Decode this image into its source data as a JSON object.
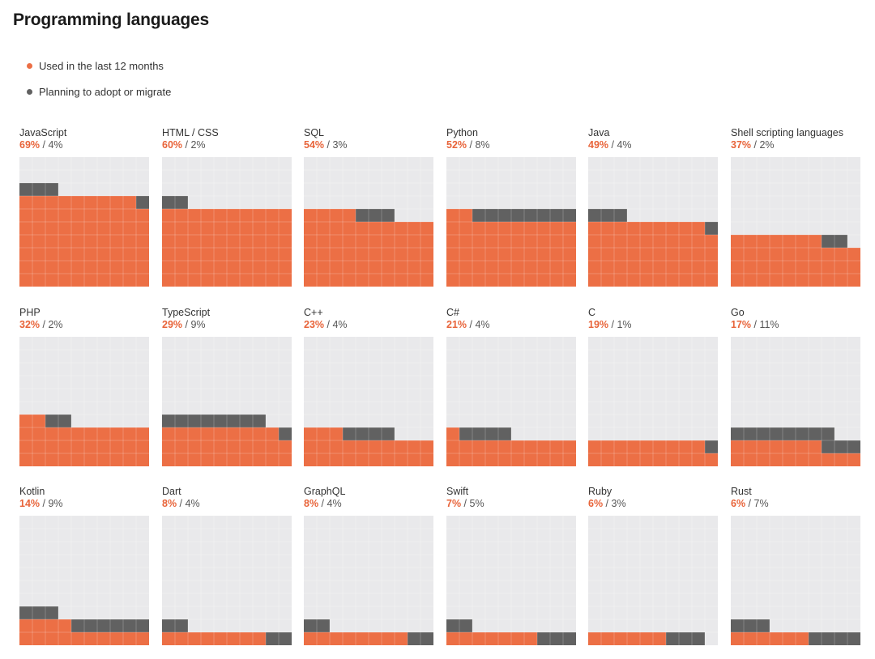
{
  "page": {
    "title": "Programming languages"
  },
  "legend": [
    {
      "label": "Used in the last 12 months",
      "color": "#ec6f45"
    },
    {
      "label": "Planning to adopt or migrate",
      "color": "#616161"
    }
  ],
  "colors": {
    "used": "#ec6f45",
    "planning": "#616161",
    "background": "#e9e9eb",
    "gridline": "#ffffff",
    "accent_text": "#e8643a"
  },
  "chart_data": {
    "type": "waffle",
    "title": "Programming languages",
    "units_per_chart": 100,
    "grid": "10x10",
    "series": [
      {
        "name": "Used in the last 12 months"
      },
      {
        "name": "Planning to adopt or migrate"
      }
    ],
    "items": [
      {
        "name": "JavaScript",
        "used": 69,
        "planning": 4,
        "used_label": "69%",
        "planning_label": "4%"
      },
      {
        "name": "HTML / CSS",
        "used": 60,
        "planning": 2,
        "used_label": "60%",
        "planning_label": "2%"
      },
      {
        "name": "SQL",
        "used": 54,
        "planning": 3,
        "used_label": "54%",
        "planning_label": "3%"
      },
      {
        "name": "Python",
        "used": 52,
        "planning": 8,
        "used_label": "52%",
        "planning_label": "8%"
      },
      {
        "name": "Java",
        "used": 49,
        "planning": 4,
        "used_label": "49%",
        "planning_label": "4%"
      },
      {
        "name": "Shell scripting languages",
        "used": 37,
        "planning": 2,
        "used_label": "37%",
        "planning_label": "2%"
      },
      {
        "name": "PHP",
        "used": 32,
        "planning": 2,
        "used_label": "32%",
        "planning_label": "2%"
      },
      {
        "name": "TypeScript",
        "used": 29,
        "planning": 9,
        "used_label": "29%",
        "planning_label": "9%"
      },
      {
        "name": "C++",
        "used": 23,
        "planning": 4,
        "used_label": "23%",
        "planning_label": "4%"
      },
      {
        "name": "C#",
        "used": 21,
        "planning": 4,
        "used_label": "21%",
        "planning_label": "4%"
      },
      {
        "name": "C",
        "used": 19,
        "planning": 1,
        "used_label": "19%",
        "planning_label": "1%"
      },
      {
        "name": "Go",
        "used": 17,
        "planning": 11,
        "used_label": "17%",
        "planning_label": "11%"
      },
      {
        "name": "Kotlin",
        "used": 14,
        "planning": 9,
        "used_label": "14%",
        "planning_label": "9%"
      },
      {
        "name": "Dart",
        "used": 8,
        "planning": 4,
        "used_label": "8%",
        "planning_label": "4%"
      },
      {
        "name": "GraphQL",
        "used": 8,
        "planning": 4,
        "used_label": "8%",
        "planning_label": "4%"
      },
      {
        "name": "Swift",
        "used": 7,
        "planning": 5,
        "used_label": "7%",
        "planning_label": "5%"
      },
      {
        "name": "Ruby",
        "used": 6,
        "planning": 3,
        "used_label": "6%",
        "planning_label": "3%"
      },
      {
        "name": "Rust",
        "used": 6,
        "planning": 7,
        "used_label": "6%",
        "planning_label": "7%"
      }
    ]
  }
}
